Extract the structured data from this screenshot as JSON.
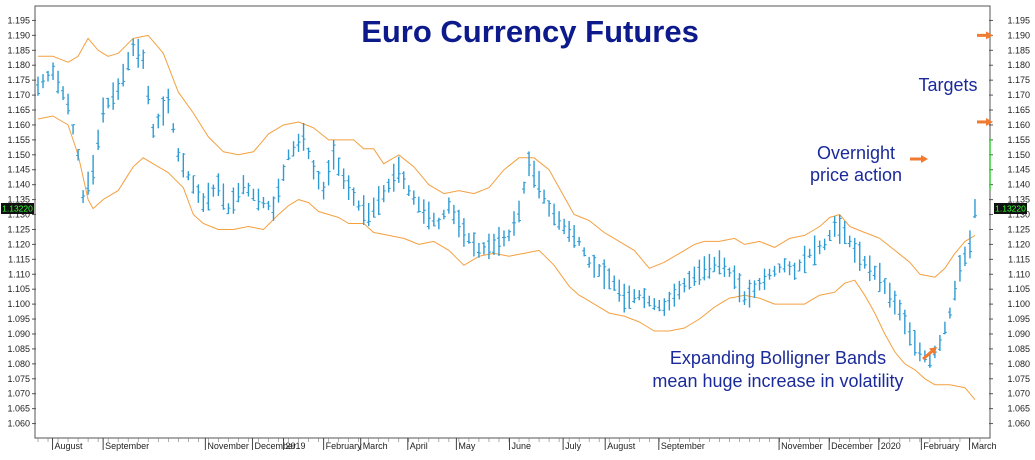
{
  "chart_data": {
    "type": "ohlc",
    "title": "Euro Currency Futures",
    "last_price_tag": "1.13220",
    "y_ticks": [
      1.06,
      1.065,
      1.07,
      1.075,
      1.08,
      1.085,
      1.09,
      1.095,
      1.1,
      1.105,
      1.11,
      1.115,
      1.12,
      1.125,
      1.13,
      1.135,
      1.14,
      1.145,
      1.15,
      1.155,
      1.16,
      1.165,
      1.17,
      1.175,
      1.18,
      1.185,
      1.19,
      1.195
    ],
    "y_tick_labels": [
      "1.060",
      "1.065",
      "1.070",
      "1.075",
      "1.080",
      "1.085",
      "1.090",
      "1.095",
      "1.100",
      "1.105",
      "1.110",
      "1.115",
      "1.120",
      "1.125",
      "1.130",
      "1.135",
      "1.140",
      "1.145",
      "1.150",
      "1.155",
      "1.160",
      "1.165",
      "1.170",
      "1.175",
      "1.180",
      "1.185",
      "1.190",
      "1.195"
    ],
    "ylim": [
      1.0555,
      1.1995
    ],
    "x_labels": [
      "August",
      "September",
      "November",
      "December",
      "2019",
      "February",
      "March",
      "April",
      "May",
      "June",
      "July",
      "August",
      "September",
      "November",
      "December",
      "2020",
      "February",
      "March"
    ],
    "x_label_pos": [
      3.5,
      13.6,
      34,
      43.4,
      49.6,
      57.6,
      65,
      74.4,
      84.1,
      94.7,
      105.4,
      113.8,
      124.5,
      148.5,
      158.5,
      168.4,
      176.9,
      186.5
    ],
    "x_count": 190,
    "bars_per_label_step": 1,
    "price_path": [
      [
        0,
        1.173
      ],
      [
        3,
        1.178
      ],
      [
        6,
        1.167
      ],
      [
        8,
        1.15
      ],
      [
        9,
        1.136
      ],
      [
        11,
        1.145
      ],
      [
        13,
        1.165
      ],
      [
        16,
        1.172
      ],
      [
        19,
        1.186
      ],
      [
        21,
        1.182
      ],
      [
        23,
        1.158
      ],
      [
        26,
        1.168
      ],
      [
        28,
        1.15
      ],
      [
        30,
        1.143
      ],
      [
        33,
        1.134
      ],
      [
        36,
        1.14
      ],
      [
        38,
        1.132
      ],
      [
        41,
        1.14
      ],
      [
        44,
        1.135
      ],
      [
        47,
        1.132
      ],
      [
        50,
        1.15
      ],
      [
        53,
        1.156
      ],
      [
        55,
        1.145
      ],
      [
        57,
        1.138
      ],
      [
        59,
        1.15
      ],
      [
        61,
        1.142
      ],
      [
        64,
        1.133
      ],
      [
        66,
        1.13
      ],
      [
        69,
        1.137
      ],
      [
        72,
        1.145
      ],
      [
        74,
        1.138
      ],
      [
        77,
        1.131
      ],
      [
        80,
        1.127
      ],
      [
        82,
        1.133
      ],
      [
        85,
        1.124
      ],
      [
        88,
        1.118
      ],
      [
        91,
        1.12
      ],
      [
        94,
        1.123
      ],
      [
        96,
        1.131
      ],
      [
        98,
        1.147
      ],
      [
        100,
        1.14
      ],
      [
        102,
        1.132
      ],
      [
        105,
        1.126
      ],
      [
        108,
        1.121
      ],
      [
        110,
        1.114
      ],
      [
        113,
        1.11
      ],
      [
        115,
        1.107
      ],
      [
        117,
        1.102
      ],
      [
        120,
        1.103
      ],
      [
        123,
        1.1
      ],
      [
        125,
        1.099
      ],
      [
        127,
        1.103
      ],
      [
        130,
        1.108
      ],
      [
        133,
        1.112
      ],
      [
        136,
        1.114
      ],
      [
        139,
        1.109
      ],
      [
        141,
        1.102
      ],
      [
        143,
        1.105
      ],
      [
        146,
        1.11
      ],
      [
        149,
        1.113
      ],
      [
        151,
        1.111
      ],
      [
        154,
        1.117
      ],
      [
        157,
        1.12
      ],
      [
        159,
        1.126
      ],
      [
        161,
        1.124
      ],
      [
        163,
        1.118
      ],
      [
        166,
        1.112
      ],
      [
        168,
        1.109
      ],
      [
        170,
        1.103
      ],
      [
        172,
        1.098
      ],
      [
        174,
        1.09
      ],
      [
        176,
        1.084
      ],
      [
        178,
        1.081
      ],
      [
        180,
        1.087
      ],
      [
        182,
        1.097
      ],
      [
        184,
        1.112
      ],
      [
        186,
        1.12
      ],
      [
        187,
        1.132
      ]
    ],
    "upper_band": [
      [
        0,
        1.183
      ],
      [
        3,
        1.183
      ],
      [
        6,
        1.181
      ],
      [
        8,
        1.183
      ],
      [
        10,
        1.189
      ],
      [
        12,
        1.185
      ],
      [
        14,
        1.183
      ],
      [
        16,
        1.184
      ],
      [
        19,
        1.189
      ],
      [
        22,
        1.19
      ],
      [
        25,
        1.184
      ],
      [
        28,
        1.171
      ],
      [
        31,
        1.164
      ],
      [
        34,
        1.156
      ],
      [
        37,
        1.151
      ],
      [
        40,
        1.15
      ],
      [
        43,
        1.151
      ],
      [
        46,
        1.157
      ],
      [
        49,
        1.16
      ],
      [
        52,
        1.161
      ],
      [
        55,
        1.159
      ],
      [
        58,
        1.155
      ],
      [
        61,
        1.155
      ],
      [
        63,
        1.155
      ],
      [
        65,
        1.152
      ],
      [
        67,
        1.152
      ],
      [
        69,
        1.147
      ],
      [
        72,
        1.15
      ],
      [
        75,
        1.146
      ],
      [
        78,
        1.14
      ],
      [
        81,
        1.137
      ],
      [
        84,
        1.138
      ],
      [
        87,
        1.137
      ],
      [
        90,
        1.139
      ],
      [
        93,
        1.145
      ],
      [
        96,
        1.149
      ],
      [
        99,
        1.149
      ],
      [
        102,
        1.145
      ],
      [
        104,
        1.139
      ],
      [
        107,
        1.13
      ],
      [
        110,
        1.128
      ],
      [
        113,
        1.124
      ],
      [
        116,
        1.121
      ],
      [
        119,
        1.118
      ],
      [
        122,
        1.112
      ],
      [
        125,
        1.114
      ],
      [
        128,
        1.117
      ],
      [
        131,
        1.12
      ],
      [
        133,
        1.121
      ],
      [
        136,
        1.121
      ],
      [
        139,
        1.122
      ],
      [
        141,
        1.12
      ],
      [
        144,
        1.121
      ],
      [
        147,
        1.119
      ],
      [
        150,
        1.122
      ],
      [
        153,
        1.123
      ],
      [
        156,
        1.126
      ],
      [
        158,
        1.129
      ],
      [
        160,
        1.13
      ],
      [
        162,
        1.126
      ],
      [
        165,
        1.124
      ],
      [
        168,
        1.122
      ],
      [
        171,
        1.118
      ],
      [
        174,
        1.114
      ],
      [
        176,
        1.11
      ],
      [
        179,
        1.109
      ],
      [
        181,
        1.112
      ],
      [
        183,
        1.117
      ],
      [
        185,
        1.121
      ],
      [
        187,
        1.123
      ]
    ],
    "lower_band": [
      [
        0,
        1.162
      ],
      [
        3,
        1.163
      ],
      [
        6,
        1.16
      ],
      [
        8,
        1.15
      ],
      [
        10,
        1.135
      ],
      [
        11,
        1.132
      ],
      [
        13,
        1.135
      ],
      [
        16,
        1.138
      ],
      [
        19,
        1.146
      ],
      [
        21,
        1.149
      ],
      [
        23,
        1.147
      ],
      [
        26,
        1.144
      ],
      [
        29,
        1.139
      ],
      [
        31,
        1.13
      ],
      [
        33,
        1.127
      ],
      [
        36,
        1.125
      ],
      [
        39,
        1.125
      ],
      [
        42,
        1.126
      ],
      [
        45,
        1.125
      ],
      [
        48,
        1.13
      ],
      [
        50,
        1.133
      ],
      [
        52,
        1.135
      ],
      [
        54,
        1.134
      ],
      [
        56,
        1.131
      ],
      [
        58,
        1.13
      ],
      [
        60,
        1.129
      ],
      [
        62,
        1.127
      ],
      [
        65,
        1.127
      ],
      [
        67,
        1.124
      ],
      [
        70,
        1.123
      ],
      [
        73,
        1.122
      ],
      [
        76,
        1.12
      ],
      [
        79,
        1.121
      ],
      [
        82,
        1.118
      ],
      [
        85,
        1.113
      ],
      [
        88,
        1.116
      ],
      [
        91,
        1.117
      ],
      [
        94,
        1.116
      ],
      [
        97,
        1.117
      ],
      [
        100,
        1.118
      ],
      [
        103,
        1.113
      ],
      [
        106,
        1.106
      ],
      [
        108,
        1.103
      ],
      [
        111,
        1.1
      ],
      [
        114,
        1.097
      ],
      [
        117,
        1.096
      ],
      [
        120,
        1.094
      ],
      [
        123,
        1.091
      ],
      [
        126,
        1.091
      ],
      [
        129,
        1.092
      ],
      [
        132,
        1.095
      ],
      [
        135,
        1.099
      ],
      [
        138,
        1.102
      ],
      [
        141,
        1.103
      ],
      [
        144,
        1.102
      ],
      [
        147,
        1.1
      ],
      [
        150,
        1.1
      ],
      [
        153,
        1.1
      ],
      [
        156,
        1.103
      ],
      [
        159,
        1.104
      ],
      [
        161,
        1.107
      ],
      [
        163,
        1.108
      ],
      [
        165,
        1.103
      ],
      [
        167,
        1.097
      ],
      [
        169,
        1.09
      ],
      [
        171,
        1.084
      ],
      [
        173,
        1.08
      ],
      [
        175,
        1.078
      ],
      [
        177,
        1.075
      ],
      [
        179,
        1.073
      ],
      [
        182,
        1.073
      ],
      [
        185,
        1.072
      ],
      [
        187,
        1.068
      ]
    ],
    "overnight_line": [
      1.138,
      1.1555
    ],
    "annotations": {
      "targets": "Targets",
      "overnight_1": "Overnight",
      "overnight_2": "price action",
      "bands_1": "Expanding Bolligner Bands",
      "bands_2": "mean huge increase in volatility"
    },
    "target_levels": [
      1.19,
      1.161
    ],
    "colors": {
      "bars": "#2f9bd4",
      "bands": "#f4a040",
      "arrows": "#f07a30",
      "overnight": "#33cc33",
      "title": "#0d1a8c",
      "annotation": "#1a2a9a",
      "price_tag_bg": "#111111",
      "price_tag_text": "#33ff33"
    }
  }
}
